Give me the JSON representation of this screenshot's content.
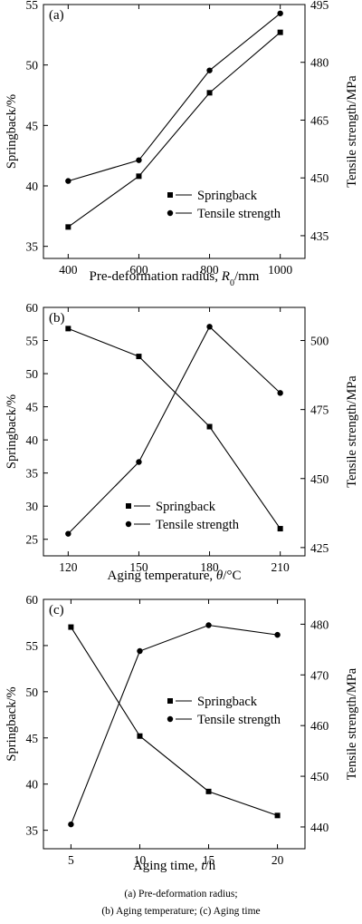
{
  "chart_data": [
    {
      "type": "line",
      "panel_label": "(a)",
      "xlabel_main": "Pre-deformation radius, ",
      "xlabel_symbol": "R",
      "xlabel_sub": "0",
      "xlabel_unit": "/mm",
      "ylabel_left": "Springback/%",
      "ylabel_right": "Tensile strength/MPa",
      "x": [
        400,
        600,
        800,
        1000
      ],
      "xticks": [
        400,
        600,
        800,
        1000
      ],
      "xlim": [
        330,
        1070
      ],
      "ylim_left": [
        34.0,
        55.0
      ],
      "yticks_left": [
        35,
        40,
        45,
        50,
        55
      ],
      "ylim_right": [
        429.1,
        495.0
      ],
      "yticks_right": [
        435,
        450,
        465,
        480,
        495
      ],
      "legend_position": "lower-right",
      "series": [
        {
          "name": "Springback",
          "axis": "left",
          "marker": "square",
          "values": [
            36.6,
            40.8,
            47.7,
            52.7
          ]
        },
        {
          "name": "Tensile strength",
          "axis": "right",
          "marker": "circle",
          "values": [
            449.2,
            454.6,
            477.9,
            492.7
          ]
        }
      ]
    },
    {
      "type": "line",
      "panel_label": "(b)",
      "xlabel_main": "Aging temperature, ",
      "xlabel_symbol": "θ",
      "xlabel_sub": "",
      "xlabel_unit": "/°C",
      "ylabel_left": "Springback/%",
      "ylabel_right": "Tensile strength/MPa",
      "x": [
        120,
        150,
        180,
        210
      ],
      "xticks": [
        120,
        150,
        180,
        210
      ],
      "xlim": [
        109.5,
        220.5
      ],
      "ylim_left": [
        22.5,
        60.0
      ],
      "yticks_left": [
        25,
        30,
        35,
        40,
        45,
        50,
        55,
        60
      ],
      "ylim_right": [
        422.0,
        512.0
      ],
      "yticks_right": [
        425,
        450,
        475,
        500
      ],
      "legend_position": "bottom-center",
      "series": [
        {
          "name": "Springback",
          "axis": "left",
          "marker": "square",
          "values": [
            56.8,
            52.6,
            42.0,
            26.6
          ]
        },
        {
          "name": "Tensile strength",
          "axis": "right",
          "marker": "circle",
          "values": [
            430.0,
            456.0,
            505.0,
            481.0
          ]
        }
      ]
    },
    {
      "type": "line",
      "panel_label": "(c)",
      "xlabel_main": "Aging time, ",
      "xlabel_symbol": "t",
      "xlabel_sub": "",
      "xlabel_unit": "/h",
      "ylabel_left": "Springback/%",
      "ylabel_right": "Tensile strength/MPa",
      "x": [
        5,
        10,
        15,
        20
      ],
      "xticks": [
        5,
        10,
        15,
        20
      ],
      "xlim": [
        3.0,
        22.0
      ],
      "ylim_left": [
        33.0,
        60.0
      ],
      "yticks_left": [
        35,
        40,
        45,
        50,
        55,
        60
      ],
      "ylim_right": [
        435.7,
        484.9
      ],
      "yticks_right": [
        440,
        450,
        460,
        470,
        480
      ],
      "legend_position": "top-right",
      "series": [
        {
          "name": "Springback",
          "axis": "left",
          "marker": "square",
          "values": [
            57.0,
            45.2,
            39.2,
            36.6
          ]
        },
        {
          "name": "Tensile strength",
          "axis": "right",
          "marker": "circle",
          "values": [
            440.5,
            474.7,
            479.8,
            477.9
          ]
        }
      ]
    }
  ],
  "caption": {
    "line1": "(a)  Pre-deformation  radius;",
    "line2": "(b) Aging temperature; (c) Aging time"
  }
}
